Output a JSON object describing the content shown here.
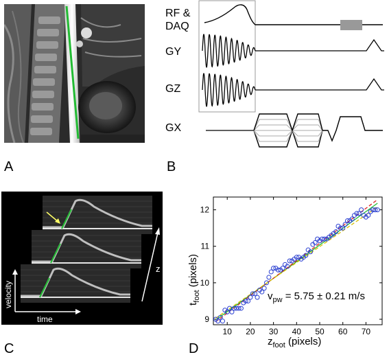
{
  "panels": {
    "a": {
      "letter": "A"
    },
    "b": {
      "letter": "B",
      "labels": {
        "rf_line1": "RF &",
        "rf_line2": "DAQ",
        "gy": "GY",
        "gz": "GZ",
        "gx": "GX"
      }
    },
    "c": {
      "letter": "C",
      "labels": {
        "velocity": "velocity",
        "time": "time",
        "z": "z"
      }
    },
    "d": {
      "letter": "D",
      "annotation_main": "v",
      "annotation_sub": "pw",
      "annotation_rest": " = 5.75 ± 0.21 m/s"
    }
  },
  "colors": {
    "fit_line": "#22bb33",
    "marker": "#2a3fd0",
    "fit_dashed_red": "#dd2222",
    "fit_dashed_yellow": "#d8c000",
    "arrow_yellow": "#ffff66",
    "pulse_box": "#999999"
  },
  "chart_data": {
    "type": "scatter",
    "xlabel_main": "z",
    "xlabel_sub": "foot",
    "xlabel_rest": " (pixels)",
    "ylabel_main": "t",
    "ylabel_sub": "foot",
    "ylabel_rest": " (pixels)",
    "xlim": [
      4,
      77
    ],
    "ylim": [
      8.85,
      12.35
    ],
    "xticks": [
      10,
      20,
      30,
      40,
      50,
      60,
      70
    ],
    "yticks": [
      9,
      10,
      11,
      12
    ],
    "series": [
      {
        "marker": "circle",
        "x": [
          5,
          6,
          7,
          8,
          9,
          10,
          11,
          12,
          13,
          14,
          15,
          16,
          17,
          18,
          19,
          20,
          21,
          22,
          23,
          24,
          25,
          26,
          27,
          28,
          29,
          30,
          31,
          32,
          33,
          34,
          35,
          36,
          37,
          38,
          39,
          40,
          41,
          42,
          43,
          44,
          45,
          46,
          47,
          48,
          49,
          50,
          51,
          52,
          53,
          54,
          55,
          56,
          57,
          58,
          59,
          60,
          61,
          62,
          63,
          64,
          65,
          66,
          67,
          68,
          69,
          70,
          71,
          72,
          73,
          74,
          75
        ],
        "y": [
          9.0,
          8.95,
          9.05,
          8.95,
          9.25,
          9.2,
          9.3,
          9.2,
          9.3,
          9.3,
          9.3,
          9.3,
          9.45,
          9.5,
          9.5,
          9.6,
          9.7,
          9.7,
          9.6,
          9.8,
          9.75,
          9.85,
          10.0,
          10.15,
          10.3,
          10.4,
          10.4,
          10.35,
          10.35,
          10.4,
          10.5,
          10.45,
          10.6,
          10.6,
          10.65,
          10.7,
          10.7,
          10.65,
          10.7,
          10.75,
          10.9,
          10.85,
          11.05,
          11.1,
          11.2,
          11.15,
          11.2,
          11.2,
          11.2,
          11.25,
          11.3,
          11.35,
          11.4,
          11.55,
          11.5,
          11.5,
          11.6,
          11.7,
          11.7,
          11.75,
          11.85,
          11.9,
          11.9,
          12.0,
          11.85,
          11.8,
          11.85,
          11.95,
          12.0,
          12.0,
          12.0
        ]
      }
    ],
    "fit_lines": [
      {
        "style": "solid",
        "x": [
          5,
          75
        ],
        "y": [
          8.98,
          12.18
        ]
      },
      {
        "style": "dashed",
        "x": [
          5,
          75
        ],
        "y": [
          8.93,
          12.28
        ]
      },
      {
        "style": "dashed",
        "x": [
          5,
          75
        ],
        "y": [
          9.03,
          12.08
        ]
      }
    ]
  }
}
